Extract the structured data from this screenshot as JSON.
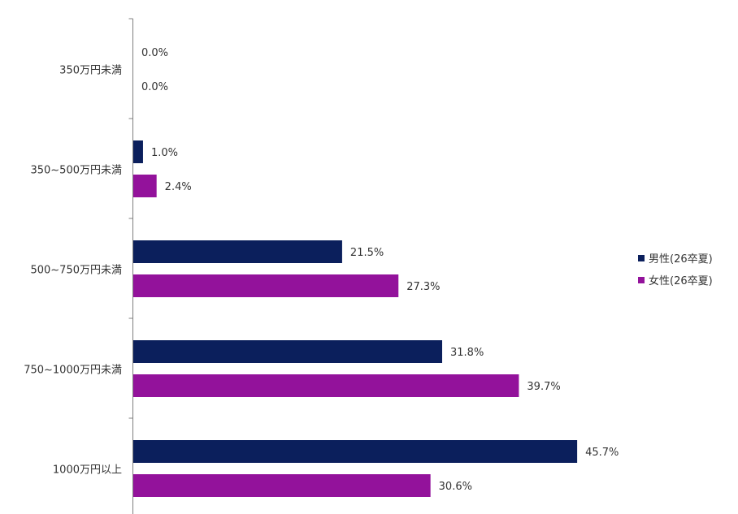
{
  "chart_data": {
    "type": "bar",
    "orientation": "horizontal",
    "title": "",
    "xlabel": "",
    "ylabel": "",
    "xlim": [
      0,
      50
    ],
    "grid": false,
    "legend_position": "right",
    "categories": [
      "350万円未満",
      "350~500万円未満",
      "500~750万円未満",
      "750~1000万円未満",
      "1000万円以上"
    ],
    "series": [
      {
        "name": "男性(26卒夏)",
        "color": "#0b1f5c",
        "values": [
          0.0,
          1.0,
          21.5,
          31.8,
          45.7
        ],
        "labels": [
          "0.0%",
          "1.0%",
          "21.5%",
          "31.8%",
          "45.7%"
        ]
      },
      {
        "name": "女性(26卒夏)",
        "color": "#93129b",
        "values": [
          0.0,
          2.4,
          27.3,
          39.7,
          30.6
        ],
        "labels": [
          "0.0%",
          "2.4%",
          "27.3%",
          "39.7%",
          "30.6%"
        ]
      }
    ]
  }
}
